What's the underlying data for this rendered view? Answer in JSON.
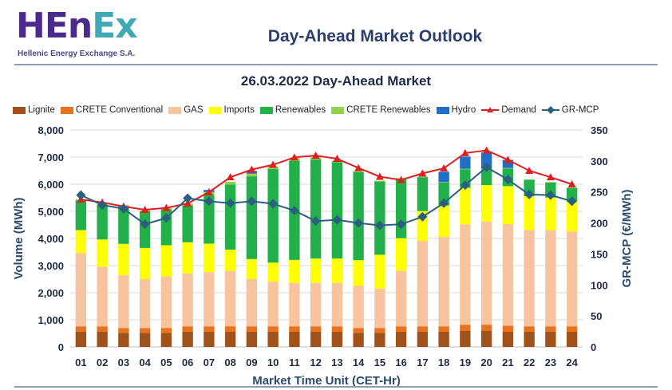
{
  "header": {
    "logo_text": "HEnEx",
    "logo_subtitle": "Hellenic Energy Exchange S.A.",
    "report_title": "Day-Ahead Market Outlook"
  },
  "colors": {
    "Lignite": "#a0521a",
    "CRETE Conventional": "#e8731e",
    "GAS": "#f8c49f",
    "Imports": "#ffff00",
    "Renewables": "#22b04a",
    "CRETE Renewables": "#92d050",
    "Hydro": "#1f6fc6",
    "Demand": "#e02020",
    "GR-MCP": "#2a5f80",
    "grid": "#d9d9d9"
  },
  "chart_data": {
    "type": "bar",
    "stacked": true,
    "title": "26.03.2022  Day-Ahead Market",
    "xlabel": "Market Time Unit (CET-Hr)",
    "ylabel": "Volume (MWh)",
    "y2label": "GR-MCP (€/MWh)",
    "ylim": [
      0,
      8000
    ],
    "y_ticks": [
      "0",
      "1,000",
      "2,000",
      "3,000",
      "4,000",
      "5,000",
      "6,000",
      "7,000",
      "8,000"
    ],
    "y2lim": [
      0,
      350
    ],
    "y2_ticks": [
      "0",
      "50",
      "100",
      "150",
      "200",
      "250",
      "300",
      "350"
    ],
    "categories": [
      "01",
      "02",
      "03",
      "04",
      "05",
      "06",
      "07",
      "08",
      "09",
      "10",
      "11",
      "12",
      "13",
      "14",
      "15",
      "16",
      "17",
      "18",
      "19",
      "20",
      "21",
      "22",
      "23",
      "24"
    ],
    "series": [
      {
        "name": "Lignite",
        "values": [
          560,
          560,
          520,
          520,
          520,
          560,
          560,
          560,
          560,
          560,
          560,
          560,
          560,
          520,
          520,
          560,
          560,
          560,
          600,
          600,
          560,
          560,
          560,
          560
        ]
      },
      {
        "name": "CRETE Conventional",
        "values": [
          200,
          200,
          180,
          180,
          180,
          200,
          200,
          200,
          200,
          200,
          200,
          200,
          200,
          180,
          180,
          200,
          200,
          200,
          220,
          220,
          220,
          200,
          200,
          200
        ]
      },
      {
        "name": "GAS",
        "values": [
          2700,
          2200,
          1950,
          1800,
          1900,
          1950,
          2000,
          2050,
          1750,
          1650,
          1600,
          1600,
          1600,
          1550,
          1450,
          2050,
          3150,
          3300,
          3700,
          3800,
          3750,
          3550,
          3550,
          3500
        ]
      },
      {
        "name": "Imports",
        "values": [
          850,
          1000,
          1150,
          1150,
          1150,
          1150,
          1050,
          780,
          730,
          700,
          850,
          900,
          900,
          950,
          1250,
          1200,
          1100,
          1150,
          1350,
          1350,
          1400,
          1250,
          1200,
          1100
        ]
      },
      {
        "name": "Renewables",
        "values": [
          1100,
          1280,
          1400,
          1350,
          1330,
          1350,
          1800,
          2400,
          3050,
          3450,
          3650,
          3650,
          3550,
          3250,
          2700,
          2200,
          1250,
          850,
          680,
          580,
          650,
          600,
          550,
          500
        ]
      },
      {
        "name": "CRETE Renewables",
        "values": [
          30,
          30,
          30,
          40,
          50,
          80,
          100,
          100,
          100,
          100,
          100,
          80,
          60,
          40,
          30,
          20,
          20,
          20,
          20,
          20,
          20,
          20,
          20,
          20
        ]
      },
      {
        "name": "Hydro",
        "values": [
          0,
          0,
          0,
          0,
          0,
          0,
          80,
          0,
          100,
          0,
          0,
          0,
          0,
          0,
          0,
          0,
          0,
          380,
          450,
          600,
          300,
          0,
          0,
          0
        ]
      }
    ],
    "line_series": [
      {
        "name": "Demand",
        "axis": "left",
        "values": [
          5440,
          5330,
          5180,
          5060,
          5130,
          5290,
          5710,
          6260,
          6540,
          6720,
          6990,
          7060,
          6940,
          6600,
          6280,
          6160,
          6400,
          6590,
          7150,
          7250,
          6900,
          6500,
          6260,
          6000
        ]
      },
      {
        "name": "GR-MCP",
        "axis": "right",
        "values": [
          245,
          229,
          223,
          198,
          208,
          240,
          235,
          232,
          235,
          231,
          220,
          203,
          205,
          200,
          196,
          198,
          210,
          232,
          261,
          290,
          270,
          246,
          245,
          235
        ]
      }
    ],
    "legend": [
      "Lignite",
      "CRETE Conventional",
      "GAS",
      "Imports",
      "Renewables",
      "CRETE Renewables",
      "Hydro",
      "Demand",
      "GR-MCP"
    ],
    "legend_position": "top"
  }
}
